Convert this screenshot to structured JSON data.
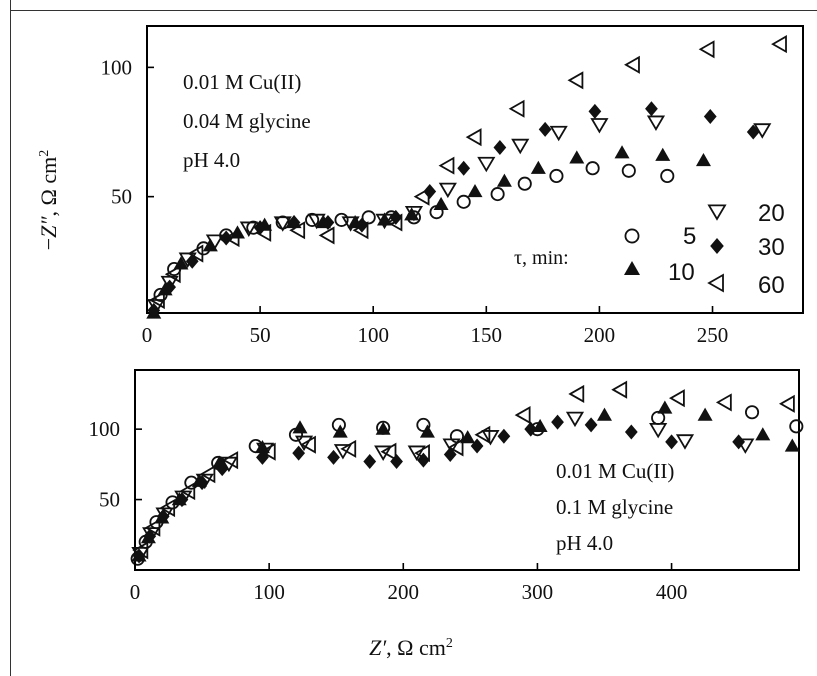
{
  "chart_data": [
    {
      "type": "scatter",
      "ylabel_pre": "−",
      "ylabel_main": "Z″",
      "ylabel_rest": ", Ω cm",
      "ylabel_sup": "2",
      "xlim": [
        0,
        290
      ],
      "ylim": [
        5,
        116
      ],
      "xticks": [
        "0",
        "50",
        "100",
        "150",
        "200",
        "250"
      ],
      "xtick_values": [
        0,
        50,
        100,
        150,
        200,
        250
      ],
      "yticks": [
        "50",
        "100"
      ],
      "ytick_values": [
        50,
        100
      ],
      "annotation": [
        "0.01 M Cu(II)",
        "0.04 M glycine",
        "pH 4.0"
      ],
      "legend_title": "τ, min:",
      "legend_placement": "lower-right",
      "series": [
        {
          "name": "5",
          "marker": "circle",
          "x": [
            2,
            6,
            12,
            25,
            35,
            47,
            60,
            73,
            86,
            98,
            108,
            118,
            128,
            140,
            155,
            167,
            181,
            197,
            213,
            230
          ],
          "y": [
            3,
            12,
            22,
            30,
            35,
            38,
            40,
            41,
            41,
            42,
            42,
            42,
            44,
            48,
            51,
            55,
            58,
            61,
            60,
            58
          ]
        },
        {
          "name": "10",
          "marker": "triangle-up",
          "x": [
            3,
            8,
            15,
            28,
            40,
            52,
            65,
            78,
            92,
            105,
            117,
            130,
            145,
            158,
            173,
            190,
            210,
            228,
            246
          ],
          "y": [
            5,
            14,
            24,
            31,
            36,
            39,
            40,
            40,
            40,
            41,
            43,
            47,
            52,
            56,
            61,
            65,
            67,
            66,
            64
          ]
        },
        {
          "name": "20",
          "marker": "triangle-down",
          "x": [
            4,
            10,
            18,
            30,
            45,
            60,
            75,
            90,
            105,
            118,
            133,
            150,
            165,
            182,
            200,
            225,
            272
          ],
          "y": [
            8,
            17,
            26,
            33,
            38,
            40,
            41,
            40,
            41,
            44,
            53,
            63,
            70,
            75,
            78,
            79,
            76
          ]
        },
        {
          "name": "30",
          "marker": "diamond",
          "x": [
            3,
            10,
            20,
            35,
            50,
            65,
            80,
            95,
            110,
            125,
            140,
            156,
            176,
            198,
            223,
            249,
            268
          ],
          "y": [
            6,
            15,
            25,
            34,
            38,
            40,
            40,
            39,
            42,
            52,
            61,
            69,
            76,
            83,
            84,
            81,
            75
          ]
        },
        {
          "name": "60",
          "marker": "triangle-left",
          "x": [
            5,
            12,
            22,
            38,
            52,
            67,
            80,
            95,
            110,
            122,
            133,
            145,
            164,
            190,
            215,
            248,
            280
          ],
          "y": [
            10,
            20,
            28,
            34,
            36,
            37,
            35,
            37,
            40,
            50,
            62,
            73,
            84,
            95,
            101,
            107,
            109
          ]
        }
      ]
    },
    {
      "type": "scatter",
      "xlabel_main": "Z′",
      "xlabel_rest": ", Ω cm",
      "xlabel_sup": "2",
      "xlim": [
        0,
        495
      ],
      "ylim": [
        0,
        142
      ],
      "xticks": [
        "0",
        "100",
        "200",
        "300",
        "400"
      ],
      "xtick_values": [
        0,
        100,
        200,
        300,
        400
      ],
      "yticks": [
        "50",
        "100"
      ],
      "ytick_values": [
        50,
        100
      ],
      "annotation": [
        "0.01 M Cu(II)",
        "0.1 M glycine",
        "pH 4.0"
      ],
      "series": [
        {
          "name": "5",
          "marker": "circle",
          "x": [
            2,
            8,
            16,
            28,
            42,
            62,
            90,
            120,
            152,
            185,
            215,
            240,
            300,
            390,
            460,
            493
          ],
          "y": [
            8,
            20,
            34,
            48,
            62,
            76,
            88,
            96,
            103,
            101,
            103,
            95,
            100,
            108,
            112,
            102
          ]
        },
        {
          "name": "10",
          "marker": "triangle-up",
          "x": [
            3,
            10,
            20,
            33,
            48,
            63,
            95,
            123,
            153,
            185,
            218,
            248,
            302,
            350,
            395,
            425,
            468,
            490
          ],
          "y": [
            10,
            23,
            37,
            50,
            63,
            76,
            87,
            101,
            98,
            100,
            98,
            94,
            102,
            110,
            115,
            110,
            96,
            88
          ]
        },
        {
          "name": "20",
          "marker": "triangle-down",
          "x": [
            4,
            12,
            22,
            36,
            52,
            70,
            97,
            126,
            155,
            185,
            210,
            236,
            265,
            328,
            390,
            410,
            455
          ],
          "y": [
            12,
            26,
            40,
            52,
            64,
            76,
            86,
            91,
            85,
            84,
            84,
            89,
            95,
            108,
            100,
            92,
            89
          ]
        },
        {
          "name": "30",
          "marker": "diamond",
          "x": [
            3,
            11,
            21,
            35,
            50,
            65,
            95,
            122,
            148,
            175,
            195,
            215,
            235,
            255,
            275,
            295,
            315,
            340,
            370,
            400,
            450
          ],
          "y": [
            10,
            24,
            38,
            50,
            62,
            72,
            80,
            83,
            80,
            77,
            77,
            78,
            82,
            88,
            95,
            100,
            105,
            103,
            98,
            91,
            91
          ]
        },
        {
          "name": "60",
          "marker": "triangle-left",
          "x": [
            5,
            14,
            25,
            40,
            55,
            72,
            100,
            130,
            160,
            190,
            215,
            240,
            260,
            290,
            330,
            362,
            405,
            440,
            487
          ],
          "y": [
            14,
            30,
            44,
            56,
            68,
            78,
            84,
            89,
            86,
            84,
            83,
            87,
            96,
            110,
            125,
            128,
            122,
            119,
            118
          ]
        }
      ]
    }
  ]
}
